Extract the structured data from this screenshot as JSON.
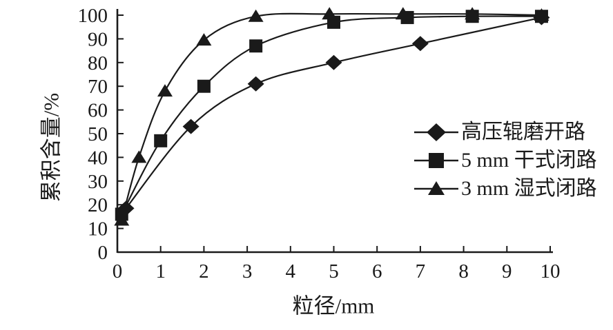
{
  "chart_data": {
    "type": "line",
    "title": "",
    "xlabel": "粒径/mm",
    "ylabel": "累积含量/%",
    "xlim": [
      0,
      10
    ],
    "ylim": [
      0,
      100
    ],
    "xticks": [
      0,
      1,
      2,
      3,
      4,
      5,
      6,
      7,
      8,
      9,
      10
    ],
    "yticks": [
      0,
      10,
      20,
      30,
      40,
      50,
      60,
      70,
      80,
      90,
      100
    ],
    "grid": false,
    "legend_position": "right-middle",
    "line_color": "#1a1a1a",
    "background_color": "#ffffff",
    "series": [
      {
        "name": "高压辊磨开路",
        "marker": "diamond",
        "points": [
          [
            0.2,
            18.5
          ],
          [
            1.7,
            53
          ],
          [
            3.2,
            71
          ],
          [
            5,
            80
          ],
          [
            7,
            88
          ],
          [
            9.8,
            99
          ]
        ]
      },
      {
        "name": "5 mm 干式闭路",
        "marker": "square",
        "points": [
          [
            0.1,
            16
          ],
          [
            1,
            47
          ],
          [
            2,
            70
          ],
          [
            3.2,
            87
          ],
          [
            5,
            97
          ],
          [
            6.7,
            99
          ],
          [
            8.2,
            99.5
          ],
          [
            9.8,
            99.5
          ]
        ]
      },
      {
        "name": "3 mm 湿式闭路",
        "marker": "triangle",
        "points": [
          [
            0.1,
            13.5
          ],
          [
            0.5,
            40
          ],
          [
            1.1,
            68
          ],
          [
            2,
            89.5
          ],
          [
            3.2,
            99.5
          ],
          [
            4.9,
            100.5
          ],
          [
            6.6,
            100.5
          ],
          [
            8.2,
            100.5
          ],
          [
            9.8,
            100
          ]
        ]
      }
    ]
  }
}
